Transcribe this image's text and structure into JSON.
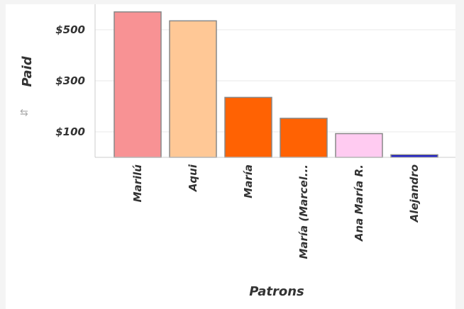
{
  "chart_data": {
    "type": "bar",
    "title": "",
    "xlabel": "Patrons",
    "ylabel": "Paid",
    "categories": [
      "Marilú",
      "Aqui",
      "María",
      "María (Marcel...",
      "Ana María R.",
      "Alejandro"
    ],
    "values": [
      570,
      535,
      235,
      153,
      93,
      10
    ],
    "colors": [
      "#f89294",
      "#ffc896",
      "#ff6203",
      "#ff6203",
      "#ffcbf1",
      "#1414c8"
    ],
    "y_ticks": [
      100,
      300,
      500
    ],
    "y_tick_labels": [
      "$100",
      "$300",
      "$500"
    ],
    "ylim": [
      0,
      600
    ],
    "grid": true
  },
  "icons": {
    "sort": "sort-icon"
  }
}
